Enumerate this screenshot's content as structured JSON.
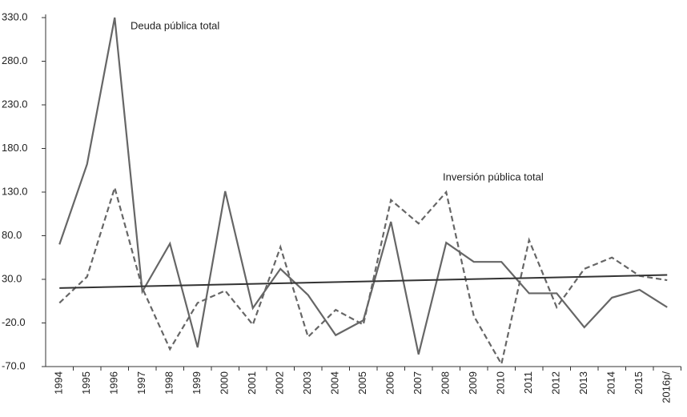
{
  "chart_data": {
    "type": "line",
    "categories": [
      "1994",
      "1995",
      "1996",
      "1997",
      "1998",
      "1999",
      "2000",
      "2001",
      "2002",
      "2003",
      "2004",
      "2005",
      "2006",
      "2007",
      "2008",
      "2009",
      "2010",
      "2011",
      "2012",
      "2013",
      "2014",
      "2015",
      "2016p/"
    ],
    "series": [
      {
        "name": "Deuda pública total",
        "color": "#666666",
        "dash": false,
        "values": [
          70,
          162,
          330,
          16,
          71,
          -48,
          131,
          -3,
          42,
          12,
          -34,
          -17,
          96,
          -56,
          72,
          50,
          50,
          14,
          14,
          -25,
          9,
          18,
          -2
        ]
      },
      {
        "name": "Inversión pública total",
        "color": "#666666",
        "dash": true,
        "values": [
          3,
          33,
          135,
          20,
          -50,
          3,
          17,
          -22,
          67,
          -36,
          -5,
          -22,
          121,
          94,
          130,
          -12,
          -67,
          75,
          -2,
          42,
          55,
          34,
          29
        ]
      }
    ],
    "trendline": {
      "start": 20,
      "end": 35,
      "color": "#333333"
    },
    "ylim": [
      -70,
      330
    ],
    "yticks": [
      {
        "value": -70,
        "label": "-70.0"
      },
      {
        "value": -20,
        "label": "-20.0"
      },
      {
        "value": 30,
        "label": "30.0"
      },
      {
        "value": 80,
        "label": "80.0"
      },
      {
        "value": 130,
        "label": "130.0"
      },
      {
        "value": 180,
        "label": "180.0"
      },
      {
        "value": 230,
        "label": "230.0"
      },
      {
        "value": 280,
        "label": "280.0"
      },
      {
        "value": 330,
        "label": "330.0"
      }
    ],
    "grid": false
  }
}
